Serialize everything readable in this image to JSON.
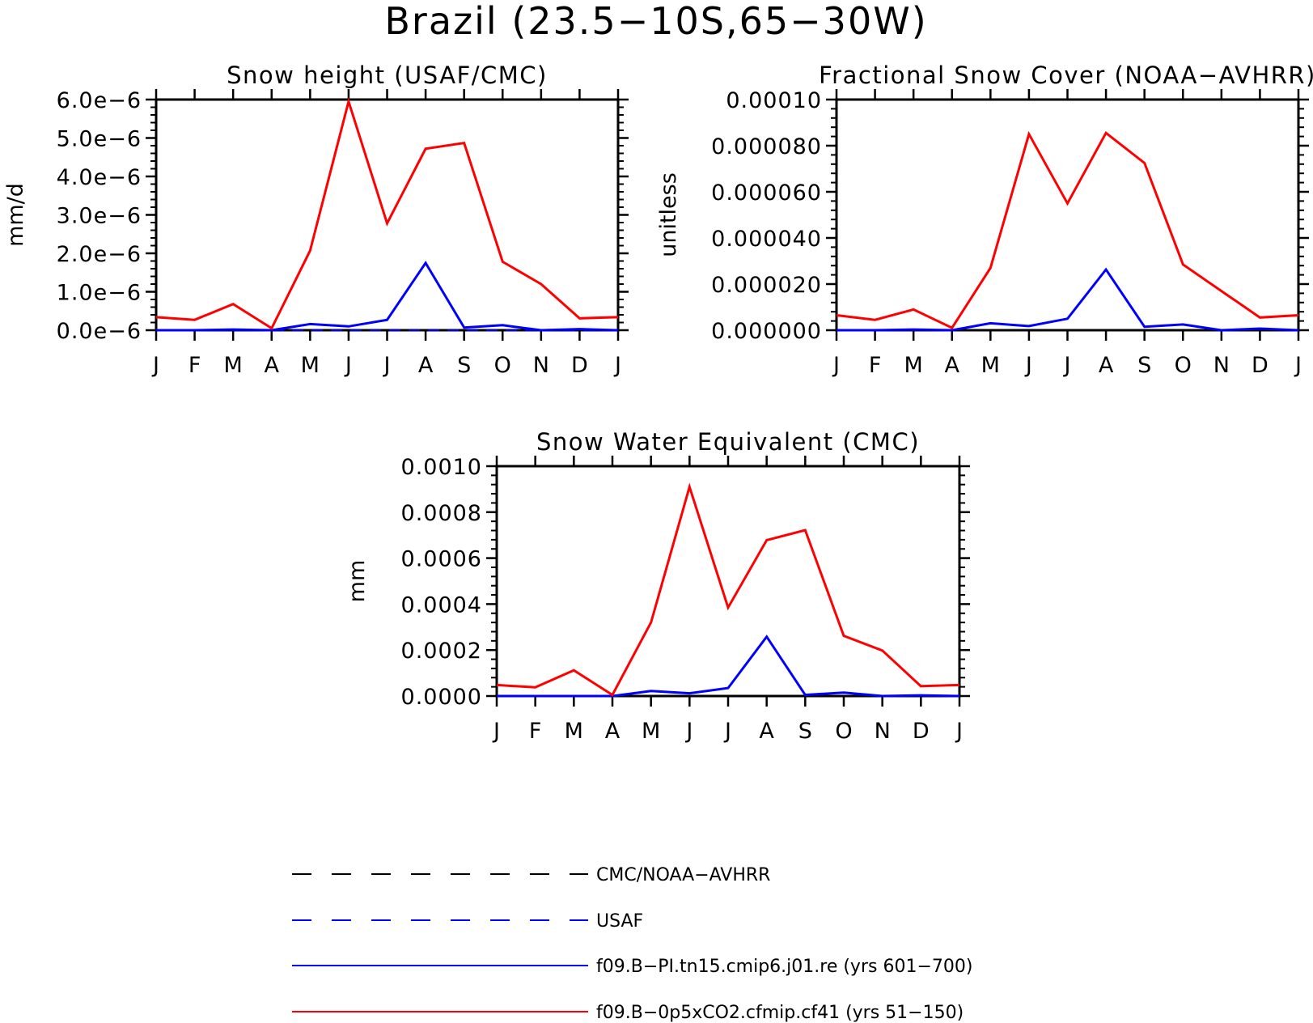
{
  "figure": {
    "title": "Brazil (23.5−10S,65−30W)"
  },
  "colors": {
    "obs_black": "#000000",
    "usaf_blue": "#0000ff",
    "model_pi_blue": "#0000ff",
    "model_co2_red": "#ff0000"
  },
  "legend": {
    "placement": "bottom",
    "items": [
      {
        "label": "CMC/NOAA−AVHRR",
        "color": "#000000",
        "style": "dashed"
      },
      {
        "label": "USAF",
        "color": "#0000ff",
        "style": "dashed"
      },
      {
        "label": "f09.B−PI.tn15.cmip6.j01.re (yrs 601−700)",
        "color": "#0000ff",
        "style": "solid"
      },
      {
        "label": "f09.B−0p5xCO2.cfmip.cf41 (yrs 51−150)",
        "color": "#ff0000",
        "style": "solid"
      }
    ]
  },
  "chart_data": [
    {
      "type": "line",
      "title": "Snow height (USAF/CMC)",
      "ylabel": "mm/d",
      "xlabel": "",
      "categories": [
        "J",
        "F",
        "M",
        "A",
        "M",
        "J",
        "J",
        "A",
        "S",
        "O",
        "N",
        "D",
        "J"
      ],
      "ylim": [
        0,
        6e-06
      ],
      "yticks": [
        0,
        1e-06,
        2e-06,
        3e-06,
        4e-06,
        5e-06,
        6e-06
      ],
      "ytick_labels": [
        "0.0e−6",
        "1.0e−6",
        "2.0e−6",
        "3.0e−6",
        "4.0e−6",
        "5.0e−6",
        "6.0e−6"
      ],
      "grid": false,
      "series": [
        {
          "name": "CMC/NOAA−AVHRR",
          "color": "#000000",
          "style": "dashed",
          "values": [
            0,
            0,
            0,
            0,
            0,
            0,
            0,
            0,
            0,
            0,
            0,
            0,
            0
          ]
        },
        {
          "name": "USAF",
          "color": "#0000ff",
          "style": "dashed",
          "values": [
            0,
            0,
            0,
            0,
            0,
            0,
            0,
            0,
            0,
            0,
            0,
            0,
            0
          ]
        },
        {
          "name": "f09.B−PI.tn15.cmip6.j01.re (yrs 601−700)",
          "color": "#0000ff",
          "style": "solid",
          "values": [
            0.0,
            0.0,
            2e-08,
            0.0,
            1.6e-07,
            1e-07,
            2.7e-07,
            1.75e-06,
            7e-08,
            1.3e-07,
            0.0,
            3e-08,
            0.0
          ]
        },
        {
          "name": "f09.B−0p5xCO2.cfmip.cf41 (yrs 51−150)",
          "color": "#ff0000",
          "style": "solid",
          "values": [
            3.4e-07,
            2.7e-07,
            6.8e-07,
            5e-08,
            2.07e-06,
            5.95e-06,
            2.78e-06,
            4.72e-06,
            4.87e-06,
            1.78e-06,
            1.2e-06,
            3.1e-07,
            3.4e-07
          ]
        }
      ]
    },
    {
      "type": "line",
      "title": "Fractional Snow Cover (NOAA−AVHRR)",
      "ylabel": "unitless",
      "xlabel": "",
      "categories": [
        "J",
        "F",
        "M",
        "A",
        "M",
        "J",
        "J",
        "A",
        "S",
        "O",
        "N",
        "D",
        "J"
      ],
      "ylim": [
        0,
        0.0001
      ],
      "yticks": [
        0,
        2e-05,
        4e-05,
        6e-05,
        8e-05,
        0.0001
      ],
      "ytick_labels": [
        "0.000000",
        "0.000020",
        "0.000040",
        "0.000060",
        "0.000080",
        "0.00010"
      ],
      "grid": false,
      "series": [
        {
          "name": "CMC/NOAA−AVHRR",
          "color": "#000000",
          "style": "dashed",
          "values": [
            0,
            0,
            0,
            0,
            0,
            0,
            0,
            0,
            0,
            0,
            0,
            0,
            0
          ]
        },
        {
          "name": "f09.B−PI.tn15.cmip6.j01.re (yrs 601−700)",
          "color": "#0000ff",
          "style": "solid",
          "values": [
            0.0,
            0.0,
            3e-07,
            0.0,
            3e-06,
            1.8e-06,
            5e-06,
            2.63e-05,
            1.5e-06,
            2.5e-06,
            0.0,
            7e-07,
            0.0
          ]
        },
        {
          "name": "f09.B−0p5xCO2.cfmip.cf41 (yrs 51−150)",
          "color": "#ff0000",
          "style": "solid",
          "values": [
            6.5e-06,
            4.5e-06,
            9e-06,
            1e-06,
            2.7e-05,
            8.5e-05,
            5.5e-05,
            8.55e-05,
            7.25e-05,
            2.85e-05,
            1.7e-05,
            5.5e-06,
            6.5e-06
          ]
        }
      ]
    },
    {
      "type": "line",
      "title": "Snow Water Equivalent (CMC)",
      "ylabel": "mm",
      "xlabel": "",
      "categories": [
        "J",
        "F",
        "M",
        "A",
        "M",
        "J",
        "J",
        "A",
        "S",
        "O",
        "N",
        "D",
        "J"
      ],
      "ylim": [
        0,
        0.001
      ],
      "yticks": [
        0,
        0.0002,
        0.0004,
        0.0006,
        0.0008,
        0.001
      ],
      "ytick_labels": [
        "0.0000",
        "0.0002",
        "0.0004",
        "0.0006",
        "0.0008",
        "0.0010"
      ],
      "grid": false,
      "series": [
        {
          "name": "CMC/NOAA−AVHRR",
          "color": "#000000",
          "style": "dashed",
          "values": [
            0,
            0,
            0,
            0,
            0,
            0,
            0,
            0,
            0,
            0,
            0,
            0,
            0
          ]
        },
        {
          "name": "f09.B−PI.tn15.cmip6.j01.re (yrs 601−700)",
          "color": "#0000ff",
          "style": "solid",
          "values": [
            0.0,
            0.0,
            0.0,
            0.0,
            2.2e-05,
            1.2e-05,
            3.5e-05,
            0.000258,
            5e-06,
            1.5e-05,
            0.0,
            3e-06,
            0.0
          ]
        },
        {
          "name": "f09.B−0p5xCO2.cfmip.cf41 (yrs 51−150)",
          "color": "#ff0000",
          "style": "solid",
          "values": [
            4.8e-05,
            3.8e-05,
            0.000112,
            5e-06,
            0.00032,
            0.00091,
            0.000385,
            0.000678,
            0.000722,
            0.000262,
            0.000198,
            4.3e-05,
            4.8e-05
          ]
        }
      ]
    }
  ]
}
